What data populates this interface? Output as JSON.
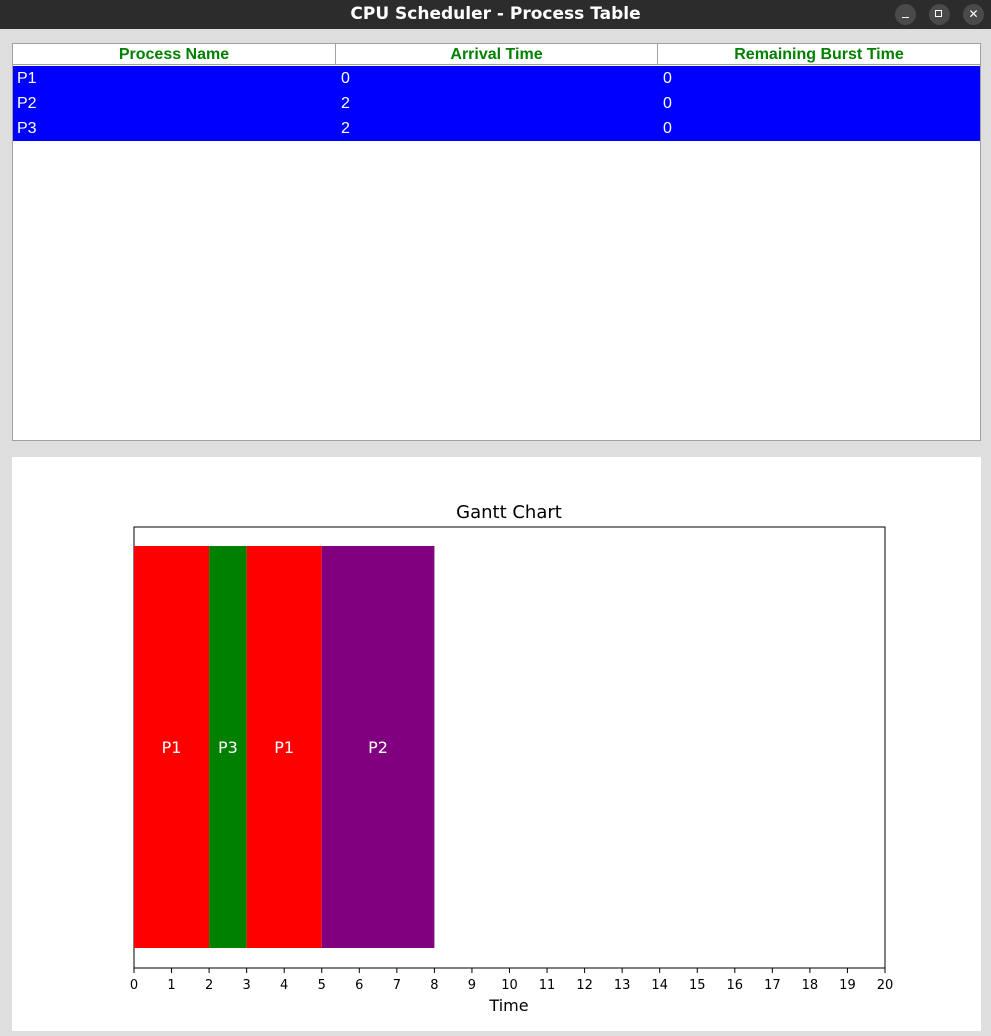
{
  "window": {
    "title": "CPU Scheduler - Process Table"
  },
  "table": {
    "columns": [
      "Process Name",
      "Arrival Time",
      "Remaining Burst Time"
    ],
    "rows": [
      [
        "P1",
        "0",
        "0"
      ],
      [
        "P2",
        "2",
        "0"
      ],
      [
        "P3",
        "2",
        "0"
      ]
    ],
    "header_color": "#008000",
    "selected_row_color": "#0000ff"
  },
  "chart_data": {
    "type": "bar",
    "title": "Gantt Chart",
    "xlabel": "Time",
    "ylabel": "",
    "xlim": [
      0,
      20
    ],
    "xticks": [
      "0",
      "1",
      "2",
      "3",
      "4",
      "5",
      "6",
      "7",
      "8",
      "9",
      "10",
      "11",
      "12",
      "13",
      "14",
      "15",
      "16",
      "17",
      "18",
      "19",
      "20"
    ],
    "grid": false,
    "segments": [
      {
        "process": "P1",
        "start": 0,
        "end": 2,
        "color": "#ff0000"
      },
      {
        "process": "P3",
        "start": 2,
        "end": 3,
        "color": "#008000"
      },
      {
        "process": "P1",
        "start": 3,
        "end": 5,
        "color": "#ff0000"
      },
      {
        "process": "P2",
        "start": 5,
        "end": 8,
        "color": "#800080"
      }
    ]
  }
}
